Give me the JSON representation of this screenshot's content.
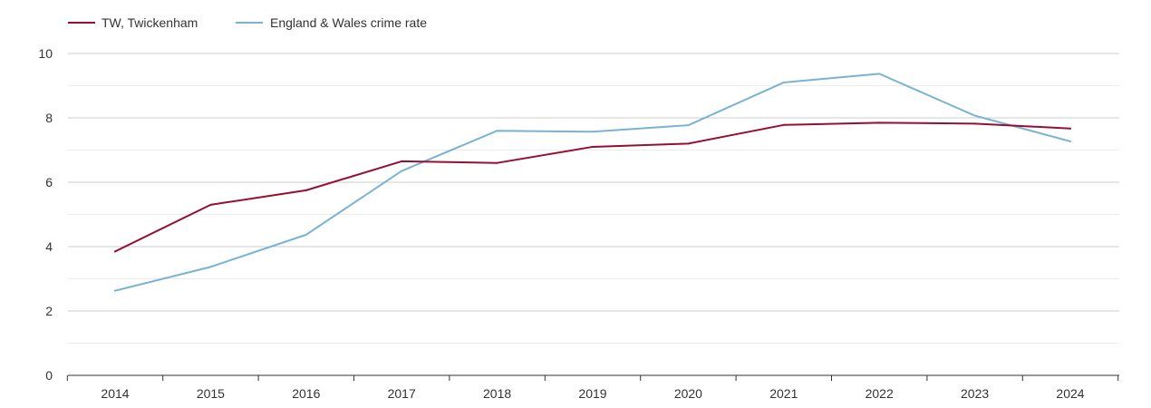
{
  "chart_data": {
    "type": "line",
    "title": "",
    "xlabel": "",
    "ylabel": "",
    "x": [
      "2014",
      "2015",
      "2016",
      "2017",
      "2018",
      "2019",
      "2020",
      "2021",
      "2022",
      "2023",
      "2024"
    ],
    "ylim": [
      0,
      10
    ],
    "yticks": [
      "0",
      "2",
      "4",
      "6",
      "8",
      "10"
    ],
    "grid": true,
    "legend": "top-left",
    "series": [
      {
        "name": "TW, Twickenham",
        "color": "#960f32",
        "values": [
          3.85,
          5.3,
          5.75,
          6.65,
          6.6,
          7.1,
          7.2,
          7.78,
          7.85,
          7.82,
          7.67
        ]
      },
      {
        "name": "England & Wales crime rate",
        "color": "#7ab3d1",
        "values": [
          2.63,
          3.37,
          4.37,
          6.35,
          7.6,
          7.57,
          7.77,
          9.1,
          9.37,
          8.07,
          7.27
        ]
      }
    ]
  }
}
